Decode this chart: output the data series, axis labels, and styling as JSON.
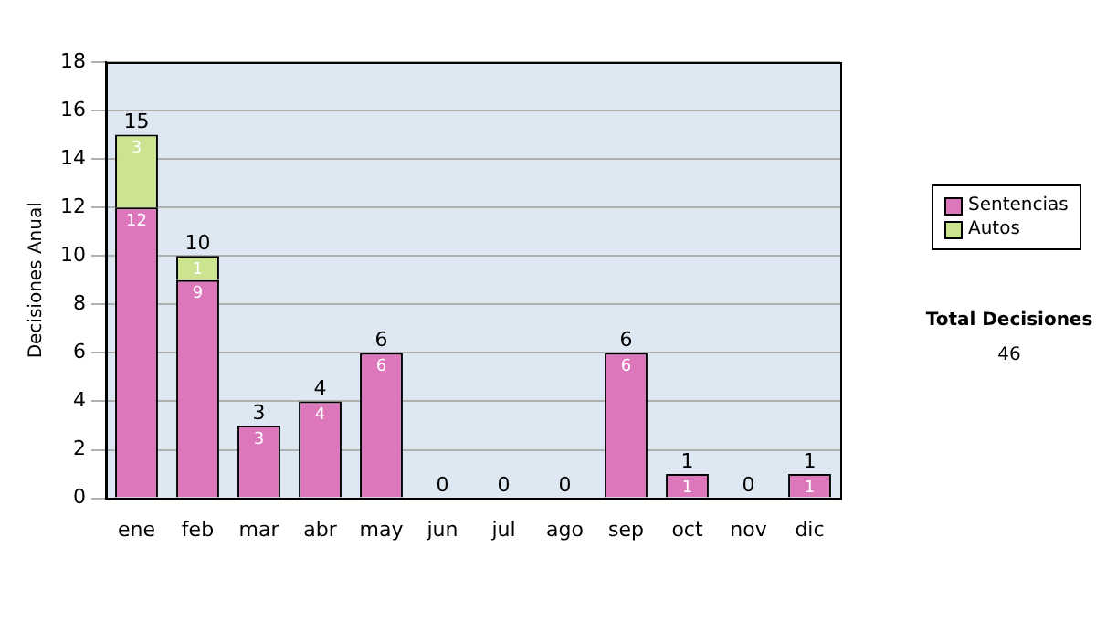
{
  "chart_data": {
    "type": "bar",
    "stacked": true,
    "ylabel": "Decisiones Anual",
    "categories": [
      "ene",
      "feb",
      "mar",
      "abr",
      "may",
      "jun",
      "jul",
      "ago",
      "sep",
      "oct",
      "nov",
      "dic"
    ],
    "series": [
      {
        "name": "Sentencias",
        "color": "#dd77bb",
        "values": [
          12,
          9,
          3,
          4,
          6,
          0,
          0,
          0,
          6,
          1,
          0,
          1
        ],
        "value_labels": [
          "12",
          "9",
          "3",
          "4",
          "6",
          null,
          null,
          null,
          "6",
          "1",
          null,
          "1"
        ]
      },
      {
        "name": "Autos",
        "color": "#cce38f",
        "values": [
          3,
          1,
          0,
          0,
          0,
          0,
          0,
          0,
          0,
          0,
          0,
          0
        ],
        "value_labels": [
          "3",
          "1",
          null,
          null,
          null,
          null,
          null,
          null,
          null,
          null,
          null,
          null
        ]
      }
    ],
    "totals": [
      "15",
      "10",
      "3",
      "4",
      "6",
      "0",
      "0",
      "0",
      "6",
      "1",
      "0",
      "1"
    ],
    "ylim": [
      0,
      18
    ],
    "yticks": [
      0,
      2,
      4,
      6,
      8,
      10,
      12,
      14,
      16,
      18
    ],
    "grid": "y",
    "legend": "right",
    "annotations": [
      "Total Decisiones",
      "46"
    ]
  }
}
